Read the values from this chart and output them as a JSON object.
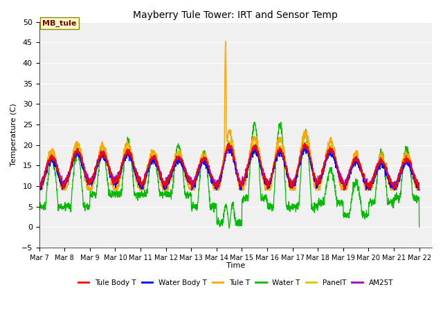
{
  "title": "Mayberry Tule Tower: IRT and Sensor Temp",
  "xlabel": "Time",
  "ylabel": "Temperature (C)",
  "ylim": [
    -5,
    50
  ],
  "yticks": [
    -5,
    0,
    5,
    10,
    15,
    20,
    25,
    30,
    35,
    40,
    45,
    50
  ],
  "xlim": [
    0,
    15.5
  ],
  "xtick_labels": [
    "Mar 7",
    "Mar 8",
    "Mar 9",
    "Mar 10",
    "Mar 11",
    "Mar 12",
    "Mar 13",
    "Mar 14",
    "Mar 15",
    "Mar 16",
    "Mar 17",
    "Mar 18",
    "Mar 19",
    "Mar 20",
    "Mar 21",
    "Mar 22"
  ],
  "xtick_positions": [
    0,
    1,
    2,
    3,
    4,
    5,
    6,
    7,
    8,
    9,
    10,
    11,
    12,
    13,
    14,
    15
  ],
  "annotation_label": "MB_tule",
  "series_colors": {
    "Tule Body T": "#ff0000",
    "Water Body T": "#0000ff",
    "Tule T": "#ffa500",
    "Water T": "#00bb00",
    "PanelT": "#cccc00",
    "AM25T": "#9900cc"
  },
  "legend_labels": [
    "Tule Body T",
    "Water Body T",
    "Tule T",
    "Water T",
    "PanelT",
    "AM25T"
  ],
  "bg_color": "#ffffff",
  "plot_bg_color": "#f0f0f0"
}
